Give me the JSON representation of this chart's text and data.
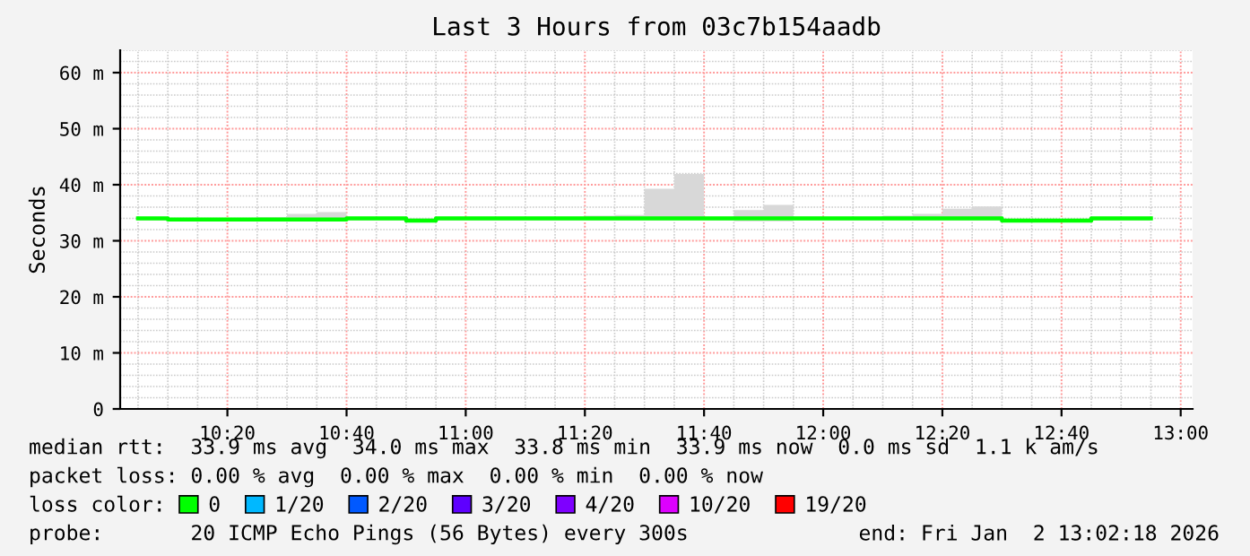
{
  "chart_data": {
    "type": "step",
    "title": "Last 3 Hours from 03c7b154aadb",
    "ylabel": "Seconds",
    "x": [
      "2026-01-02T10:05",
      "2026-01-02T10:10",
      "2026-01-02T10:15",
      "2026-01-02T10:20",
      "2026-01-02T10:25",
      "2026-01-02T10:30",
      "2026-01-02T10:35",
      "2026-01-02T10:40",
      "2026-01-02T10:45",
      "2026-01-02T10:50",
      "2026-01-02T10:55",
      "2026-01-02T11:00",
      "2026-01-02T11:05",
      "2026-01-02T11:10",
      "2026-01-02T11:15",
      "2026-01-02T11:20",
      "2026-01-02T11:25",
      "2026-01-02T11:30",
      "2026-01-02T11:35",
      "2026-01-02T11:40",
      "2026-01-02T11:45",
      "2026-01-02T11:50",
      "2026-01-02T11:55",
      "2026-01-02T12:00",
      "2026-01-02T12:05",
      "2026-01-02T12:10",
      "2026-01-02T12:15",
      "2026-01-02T12:20",
      "2026-01-02T12:25",
      "2026-01-02T12:30",
      "2026-01-02T12:35",
      "2026-01-02T12:40",
      "2026-01-02T12:45",
      "2026-01-02T12:50",
      "2026-01-02T12:55"
    ],
    "series": [
      {
        "name": "0",
        "color": "#00ff00",
        "values": [
          34.0,
          33.8,
          33.8,
          33.8,
          33.8,
          33.8,
          33.8,
          34.0,
          34.0,
          33.6,
          34.0,
          34.0,
          34.0,
          34.0,
          34.0,
          34.0,
          34.0,
          34.0,
          34.0,
          34.0,
          34.0,
          34.0,
          34.0,
          34.0,
          34.0,
          34.0,
          34.0,
          34.0,
          34.0,
          33.6,
          33.6,
          33.6,
          34.0,
          34.0,
          34.0
        ],
        "lower": [
          33.6,
          33.6,
          33.6,
          33.6,
          33.6,
          33.6,
          33.6,
          33.6,
          33.6,
          33.3,
          33.6,
          33.6,
          33.6,
          33.6,
          33.6,
          33.6,
          33.6,
          33.6,
          33.6,
          33.6,
          33.5,
          33.5,
          33.6,
          33.6,
          33.6,
          33.6,
          33.6,
          33.6,
          33.6,
          33.3,
          33.3,
          33.3,
          33.6,
          33.6,
          33.6
        ],
        "upper": [
          34.0,
          33.9,
          34.0,
          34.0,
          34.2,
          34.8,
          35.1,
          34.1,
          34.0,
          34.0,
          34.0,
          34.0,
          34.0,
          34.0,
          34.0,
          34.5,
          34.6,
          39.3,
          41.9,
          34.2,
          35.5,
          36.4,
          34.3,
          34.0,
          34.0,
          34.5,
          34.8,
          35.7,
          36.1,
          33.9,
          33.9,
          33.9,
          34.0,
          34.0,
          34.0
        ]
      },
      {
        "name": "1/20",
        "color": "#00b8ff",
        "values": [
          null,
          null,
          null,
          null,
          null,
          null,
          null,
          null,
          null,
          null,
          null,
          null,
          null,
          null,
          null,
          null,
          null,
          null,
          null,
          null,
          null,
          null,
          null,
          null,
          null,
          null,
          null,
          null,
          null,
          null,
          null,
          null,
          null,
          null,
          null
        ]
      },
      {
        "name": "2/20",
        "color": "#0059ff",
        "values": [
          null,
          null,
          null,
          null,
          null,
          null,
          null,
          null,
          null,
          null,
          null,
          null,
          null,
          null,
          null,
          null,
          null,
          null,
          null,
          null,
          null,
          null,
          null,
          null,
          null,
          null,
          null,
          null,
          null,
          null,
          null,
          null,
          null,
          null,
          null
        ]
      },
      {
        "name": "3/20",
        "color": "#5e00ff",
        "values": [
          null,
          null,
          null,
          null,
          null,
          null,
          null,
          null,
          null,
          null,
          null,
          null,
          null,
          null,
          null,
          null,
          null,
          null,
          null,
          null,
          null,
          null,
          null,
          null,
          null,
          null,
          null,
          null,
          null,
          null,
          null,
          null,
          null,
          null,
          null
        ]
      },
      {
        "name": "4/20",
        "color": "#7e00ff",
        "values": [
          null,
          null,
          null,
          null,
          null,
          null,
          null,
          null,
          null,
          null,
          null,
          null,
          null,
          null,
          null,
          null,
          null,
          null,
          null,
          null,
          null,
          null,
          null,
          null,
          null,
          null,
          null,
          null,
          null,
          null,
          null,
          null,
          null,
          null,
          null
        ]
      },
      {
        "name": "10/20",
        "color": "#dd00ff",
        "values": [
          null,
          null,
          null,
          null,
          null,
          null,
          null,
          null,
          null,
          null,
          null,
          null,
          null,
          null,
          null,
          null,
          null,
          null,
          null,
          null,
          null,
          null,
          null,
          null,
          null,
          null,
          null,
          null,
          null,
          null,
          null,
          null,
          null,
          null,
          null
        ]
      },
      {
        "name": "19/20",
        "color": "#ff0000",
        "values": [
          null,
          null,
          null,
          null,
          null,
          null,
          null,
          null,
          null,
          null,
          null,
          null,
          null,
          null,
          null,
          null,
          null,
          null,
          null,
          null,
          null,
          null,
          null,
          null,
          null,
          null,
          null,
          null,
          null,
          null,
          null,
          null,
          null,
          null,
          null
        ]
      }
    ],
    "legend_title": "loss color:",
    "legend": "bottom",
    "xlim": [
      "2026-01-02T10:02",
      "2026-01-02T13:02"
    ],
    "xticks": [
      {
        "value": "2026-01-02T10:20",
        "label": "10:20"
      },
      {
        "value": "2026-01-02T10:40",
        "label": "10:40"
      },
      {
        "value": "2026-01-02T11:00",
        "label": "11:00"
      },
      {
        "value": "2026-01-02T11:20",
        "label": "11:20"
      },
      {
        "value": "2026-01-02T11:40",
        "label": "11:40"
      },
      {
        "value": "2026-01-02T12:00",
        "label": "12:00"
      },
      {
        "value": "2026-01-02T12:20",
        "label": "12:20"
      },
      {
        "value": "2026-01-02T12:40",
        "label": "12:40"
      },
      {
        "value": "2026-01-02T13:00",
        "label": "13:00"
      }
    ],
    "ylim": [
      0,
      64
    ],
    "yticks": [
      0,
      {
        "value": 10,
        "label": "10 m"
      },
      {
        "value": 20,
        "label": "20 m"
      },
      {
        "value": 30,
        "label": "30 m"
      },
      {
        "value": 40,
        "label": "40 m"
      },
      {
        "value": 50,
        "label": "50 m"
      },
      {
        "value": 60,
        "label": "60 m"
      }
    ],
    "grid": true,
    "annotations": [
      "median rtt:  33.9 ms avg  34.0 ms max  33.8 ms min  33.9 ms now  0.0 ms sd  1.1 k am/s",
      "packet loss: 0.00 % avg  0.00 % max  0.00 % min  0.00 % now",
      "probe:       20 ICMP Echo Pings (56 Bytes) every 300s",
      "end: Fri Jan  2 13:02:18 2026"
    ]
  }
}
